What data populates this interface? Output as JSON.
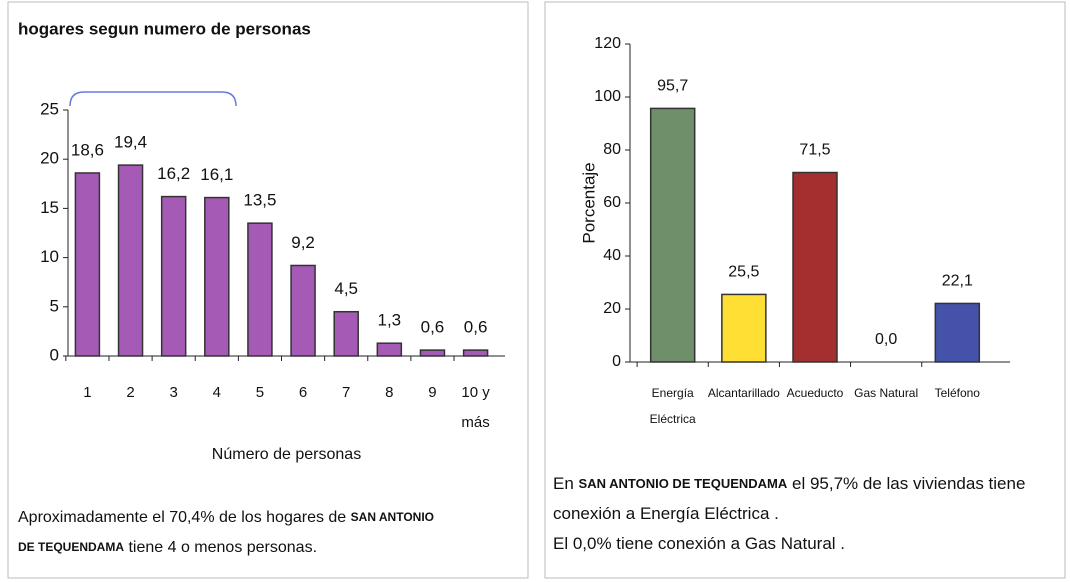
{
  "chart_data": [
    {
      "type": "bar",
      "title": "hogares segun numero de personas",
      "xlabel": "Número de personas",
      "categories": [
        "1",
        "2",
        "3",
        "4",
        "5",
        "6",
        "7",
        "8",
        "9",
        "10 y más"
      ],
      "values": [
        18.6,
        19.4,
        16.2,
        16.1,
        13.5,
        9.2,
        4.5,
        1.3,
        0.6,
        0.6
      ],
      "value_labels": [
        "18,6",
        "19,4",
        "16,2",
        "16,1",
        "13,5",
        "9,2",
        "4,5",
        "1,3",
        "0,6",
        "0,6"
      ],
      "color": "#a55ab5",
      "ylim": [
        0,
        25
      ],
      "yticks": [
        0,
        5,
        10,
        15,
        20,
        25
      ]
    },
    {
      "type": "bar",
      "ylabel": "Porcentaje",
      "categories": [
        "Energía Eléctrica",
        "Alcantarillado",
        "Acueducto",
        "Gas Natural",
        "Teléfono"
      ],
      "values": [
        95.7,
        25.5,
        71.5,
        0.0,
        22.1
      ],
      "value_labels": [
        "95,7",
        "25,5",
        "71,5",
        "0,0",
        "22,1"
      ],
      "colors": [
        "#6f8f6a",
        "#ffdf33",
        "#a3302e",
        "#888888",
        "#4452aa"
      ],
      "ylim": [
        0,
        120
      ],
      "yticks": [
        0,
        20,
        40,
        60,
        80,
        100,
        120
      ]
    }
  ],
  "captions": [
    {
      "lines": [
        [
          {
            "text": "Aproximadamente el 70,4% de los hogares de ",
            "bold": false
          },
          {
            "text": "SAN ANTONIO",
            "bold": true
          }
        ],
        [
          {
            "text": "DE TEQUENDAMA",
            "bold": true
          },
          {
            "text": " tiene 4 o menos personas.",
            "bold": false
          }
        ]
      ]
    },
    {
      "lines": [
        [
          {
            "text": "En ",
            "bold": false
          },
          {
            "text": "SAN ANTONIO DE TEQUENDAMA",
            "bold": true
          },
          {
            "text": " el 95,7% de las viviendas tiene",
            "bold": false
          }
        ],
        [
          {
            "text": "conexión a Energía Eléctrica .",
            "bold": false
          }
        ],
        [
          {
            "text": "El 0,0% tiene conexión a Gas Natural .",
            "bold": false
          }
        ]
      ]
    }
  ]
}
